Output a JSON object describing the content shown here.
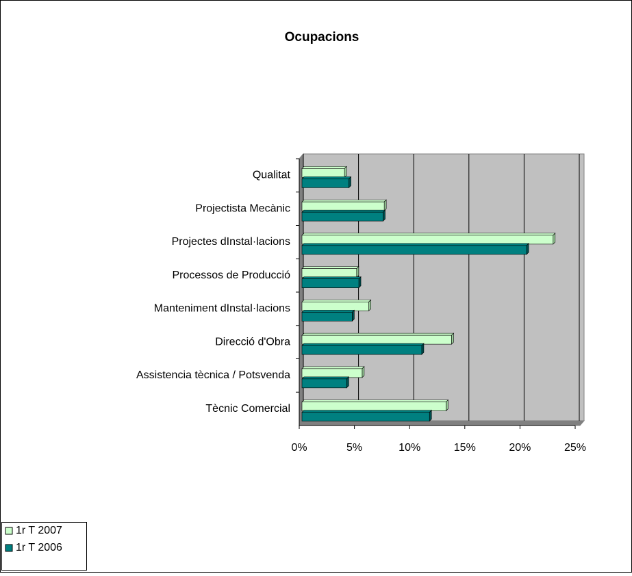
{
  "chart_data": {
    "type": "hbar",
    "title": "Ocupacions",
    "categories": [
      "Qualitat",
      "Projectista Mecànic",
      "Projectes dInstal·lacions",
      "Processos de Producció",
      "Manteniment dInstal·lacions",
      "Direcció d'Obra",
      "Assistencia tècnica / Potsvenda",
      "Tècnic Comercial"
    ],
    "series": [
      {
        "name": "1r T 2007",
        "color": "#ccffcc",
        "values": [
          4.1,
          7.7,
          23.0,
          5.2,
          6.3,
          13.8,
          5.7,
          13.3
        ]
      },
      {
        "name": "1r T 2006",
        "color": "#008080",
        "values": [
          4.5,
          7.6,
          20.6,
          5.4,
          4.8,
          11.1,
          4.3,
          11.8
        ]
      }
    ],
    "xlim": [
      0,
      25
    ],
    "xticks": [
      {
        "value": 0,
        "label": "0%"
      },
      {
        "value": 5,
        "label": "5%"
      },
      {
        "value": 10,
        "label": "10%"
      },
      {
        "value": 15,
        "label": "15%"
      },
      {
        "value": 20,
        "label": "20%"
      },
      {
        "value": 25,
        "label": "25%"
      }
    ],
    "grid": true,
    "legend": "bottom-left"
  }
}
